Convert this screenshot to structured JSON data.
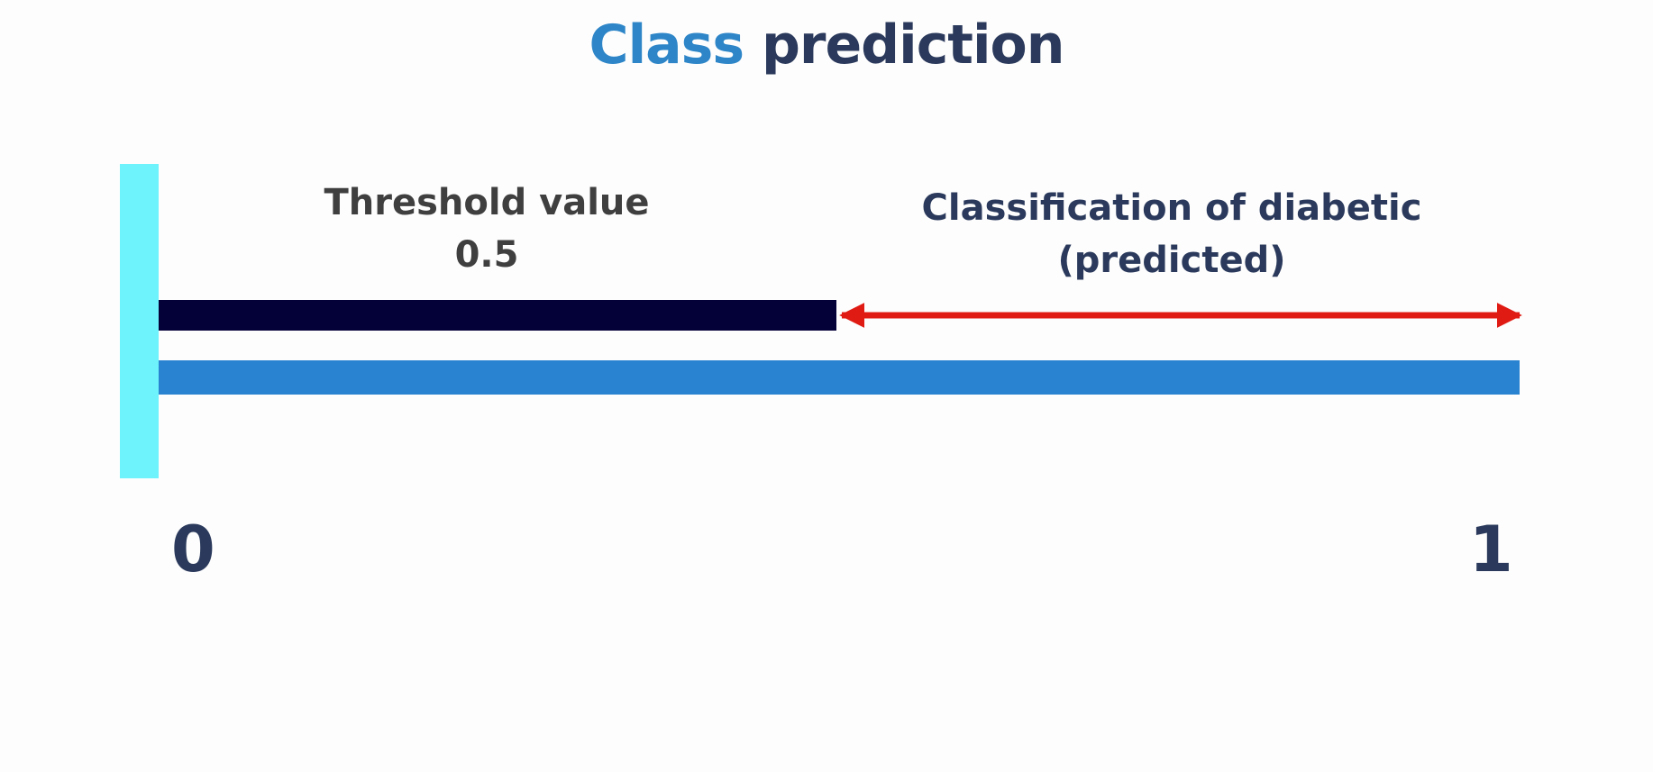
{
  "title": {
    "word1": "Class",
    "word2": "prediction"
  },
  "threshold": {
    "label": "Threshold value",
    "value_text": "0.5",
    "value": 0.5
  },
  "classification": {
    "line1": "Classification of diabetic",
    "line2": "(predicted)"
  },
  "axis": {
    "min_label": "0",
    "max_label": "1",
    "min": 0,
    "max": 1
  },
  "colors": {
    "title_accent": "#2e86c8",
    "title_main": "#2b3a5c",
    "axis_bar": "#2a83d0",
    "origin_bar": "#6ef2fc",
    "threshold_bar": "#040038",
    "arrow": "#e01b14"
  }
}
